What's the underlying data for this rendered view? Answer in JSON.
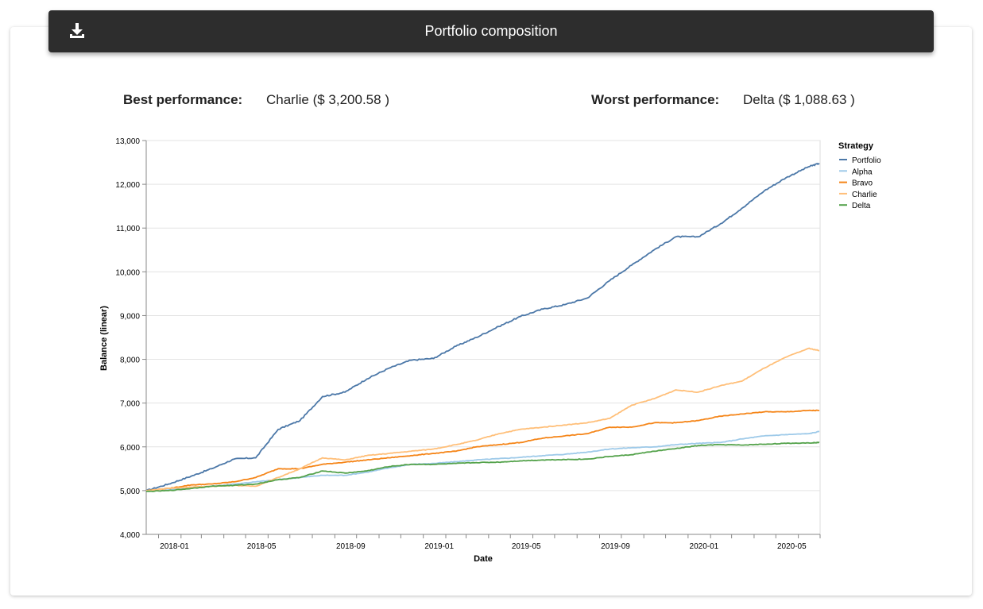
{
  "header": {
    "title": "Portfolio composition",
    "download_icon": "download-icon"
  },
  "performance": {
    "best_label": "Best performance:",
    "best_value": "Charlie ($ 3,200.58 )",
    "worst_label": "Worst performance:",
    "worst_value": "Delta ($ 1,088.63 )"
  },
  "chart_data": {
    "type": "line",
    "xlabel": "Date",
    "ylabel": "Balance (linear)",
    "ylim": [
      4000,
      13000
    ],
    "yticks": [
      4000,
      5000,
      6000,
      7000,
      8000,
      9000,
      10000,
      11000,
      12000,
      13000
    ],
    "ytick_labels": [
      "4,000",
      "5,000",
      "6,000",
      "7,000",
      "8,000",
      "9,000",
      "10,000",
      "11,000",
      "12,000",
      "13,000"
    ],
    "xlim": [
      "2017-12-15",
      "2020-07-01"
    ],
    "xtick_labels": [
      "2018-01",
      "2018-05",
      "2018-09",
      "2019-01",
      "2019-05",
      "2019-09",
      "2020-01",
      "2020-05"
    ],
    "grid": true,
    "legend": {
      "title": "Strategy",
      "placement": "right"
    },
    "series": [
      {
        "name": "Portfolio",
        "color": "#4c78a8",
        "x": [
          "2017-12-15",
          "2018-01-15",
          "2018-02-15",
          "2018-03-15",
          "2018-04-15",
          "2018-05-15",
          "2018-06-15",
          "2018-07-15",
          "2018-08-15",
          "2018-09-15",
          "2018-10-15",
          "2018-11-15",
          "2018-12-15",
          "2019-01-15",
          "2019-02-15",
          "2019-03-15",
          "2019-04-15",
          "2019-05-15",
          "2019-06-15",
          "2019-07-15",
          "2019-08-15",
          "2019-09-15",
          "2019-10-15",
          "2019-11-15",
          "2019-12-15",
          "2020-01-15",
          "2020-02-15",
          "2020-03-15",
          "2020-04-15",
          "2020-05-15",
          "2020-06-15",
          "2020-06-30"
        ],
        "y": [
          5000,
          5150,
          5330,
          5500,
          5720,
          5750,
          6400,
          6600,
          7150,
          7250,
          7550,
          7800,
          7980,
          8020,
          8300,
          8500,
          8750,
          8980,
          9150,
          9250,
          9400,
          9800,
          10150,
          10500,
          10800,
          10800,
          11100,
          11450,
          11850,
          12150,
          12400,
          12480
        ]
      },
      {
        "name": "Alpha",
        "color": "#9ecae9",
        "x": [
          "2017-12-15",
          "2018-01-15",
          "2018-02-15",
          "2018-03-15",
          "2018-04-15",
          "2018-05-15",
          "2018-06-15",
          "2018-07-15",
          "2018-08-15",
          "2018-09-15",
          "2018-10-15",
          "2018-11-15",
          "2018-12-15",
          "2019-01-15",
          "2019-02-15",
          "2019-03-15",
          "2019-04-15",
          "2019-05-15",
          "2019-06-15",
          "2019-07-15",
          "2019-08-15",
          "2019-09-15",
          "2019-10-15",
          "2019-11-15",
          "2019-12-15",
          "2020-01-15",
          "2020-02-15",
          "2020-03-15",
          "2020-04-15",
          "2020-05-15",
          "2020-06-15",
          "2020-06-30"
        ],
        "y": [
          5000,
          5020,
          5060,
          5100,
          5150,
          5200,
          5250,
          5300,
          5350,
          5350,
          5420,
          5520,
          5600,
          5620,
          5660,
          5700,
          5730,
          5760,
          5800,
          5830,
          5880,
          5950,
          5980,
          6000,
          6050,
          6080,
          6100,
          6180,
          6250,
          6280,
          6300,
          6350
        ]
      },
      {
        "name": "Bravo",
        "color": "#f58518",
        "x": [
          "2017-12-15",
          "2018-01-15",
          "2018-02-15",
          "2018-03-15",
          "2018-04-15",
          "2018-05-15",
          "2018-06-15",
          "2018-07-15",
          "2018-08-15",
          "2018-09-15",
          "2018-10-15",
          "2018-11-15",
          "2018-12-15",
          "2019-01-15",
          "2019-02-15",
          "2019-03-15",
          "2019-04-15",
          "2019-05-15",
          "2019-06-15",
          "2019-07-15",
          "2019-08-15",
          "2019-09-15",
          "2019-10-15",
          "2019-11-15",
          "2019-12-15",
          "2020-01-15",
          "2020-02-15",
          "2020-03-15",
          "2020-04-15",
          "2020-05-15",
          "2020-06-15",
          "2020-06-30"
        ],
        "y": [
          5000,
          5050,
          5130,
          5150,
          5200,
          5300,
          5500,
          5500,
          5600,
          5650,
          5700,
          5750,
          5800,
          5850,
          5900,
          6000,
          6050,
          6100,
          6200,
          6250,
          6300,
          6450,
          6450,
          6550,
          6550,
          6600,
          6700,
          6750,
          6800,
          6800,
          6830,
          6830
        ]
      },
      {
        "name": "Charlie",
        "color": "#ffbf79",
        "x": [
          "2017-12-15",
          "2018-01-15",
          "2018-02-15",
          "2018-03-15",
          "2018-04-15",
          "2018-05-15",
          "2018-06-15",
          "2018-07-15",
          "2018-08-15",
          "2018-09-15",
          "2018-10-15",
          "2018-11-15",
          "2018-12-15",
          "2019-01-15",
          "2019-02-15",
          "2019-03-15",
          "2019-04-15",
          "2019-05-15",
          "2019-06-15",
          "2019-07-15",
          "2019-08-15",
          "2019-09-15",
          "2019-10-15",
          "2019-11-15",
          "2019-12-15",
          "2020-01-15",
          "2020-02-15",
          "2020-03-15",
          "2020-04-15",
          "2020-05-15",
          "2020-06-15",
          "2020-06-30"
        ],
        "y": [
          5000,
          5050,
          5080,
          5100,
          5120,
          5100,
          5300,
          5500,
          5750,
          5700,
          5800,
          5850,
          5900,
          5950,
          6050,
          6150,
          6300,
          6400,
          6450,
          6500,
          6550,
          6650,
          6950,
          7100,
          7300,
          7250,
          7400,
          7500,
          7800,
          8050,
          8250,
          8200
        ]
      },
      {
        "name": "Delta",
        "color": "#54a24b",
        "x": [
          "2017-12-15",
          "2018-01-15",
          "2018-02-15",
          "2018-03-15",
          "2018-04-15",
          "2018-05-15",
          "2018-06-15",
          "2018-07-15",
          "2018-08-15",
          "2018-09-15",
          "2018-10-15",
          "2018-11-15",
          "2018-12-15",
          "2019-01-15",
          "2019-02-15",
          "2019-03-15",
          "2019-04-15",
          "2019-05-15",
          "2019-06-15",
          "2019-07-15",
          "2019-08-15",
          "2019-09-15",
          "2019-10-15",
          "2019-11-15",
          "2019-12-15",
          "2020-01-15",
          "2020-02-15",
          "2020-03-15",
          "2020-04-15",
          "2020-05-15",
          "2020-06-15",
          "2020-06-30"
        ],
        "y": [
          4980,
          5000,
          5050,
          5100,
          5120,
          5150,
          5250,
          5300,
          5450,
          5400,
          5450,
          5550,
          5600,
          5600,
          5620,
          5640,
          5650,
          5680,
          5700,
          5710,
          5720,
          5780,
          5820,
          5900,
          5960,
          6030,
          6050,
          6040,
          6060,
          6080,
          6090,
          6100
        ]
      }
    ]
  }
}
